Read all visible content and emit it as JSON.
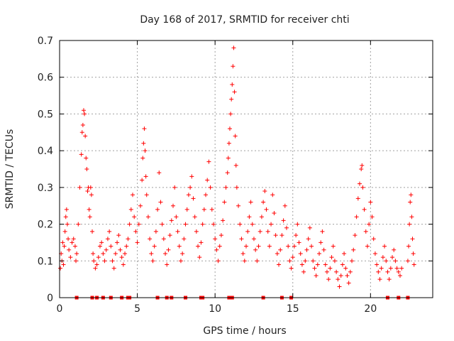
{
  "chart_data": {
    "type": "scatter",
    "title": "Day 168 of 2017, SRMTID for receiver chti",
    "xlabel": "GPS time / hours",
    "ylabel": "SRMTID / TECUs",
    "xlim": [
      0,
      24
    ],
    "ylim": [
      0,
      0.7
    ],
    "grid": true,
    "x_ticks": [
      0,
      5,
      10,
      15,
      20
    ],
    "x_tick_labels": [
      "0",
      "5",
      "10",
      "15",
      "20"
    ],
    "y_ticks": [
      0,
      0.1,
      0.2,
      0.3,
      0.4,
      0.5,
      0.6,
      0.7
    ],
    "y_tick_labels": [
      "0",
      "0.1",
      "0.2",
      "0.3",
      "0.4",
      "0.5",
      "0.6",
      "0.7"
    ],
    "marker": "+",
    "colors": {
      "points": "#ff0000",
      "grid": "#a0a0a0",
      "axis": "#000000"
    },
    "series": [
      {
        "name": "SRMTID",
        "points": [
          [
            0.05,
            0.08
          ],
          [
            0.1,
            0.12
          ],
          [
            0.15,
            0.1
          ],
          [
            0.2,
            0.15
          ],
          [
            0.25,
            0.09
          ],
          [
            0.3,
            0.14
          ],
          [
            0.35,
            0.18
          ],
          [
            0.4,
            0.22
          ],
          [
            0.45,
            0.24
          ],
          [
            0.5,
            0.2
          ],
          [
            0.55,
            0.16
          ],
          [
            0.6,
            0.13
          ],
          [
            0.7,
            0.11
          ],
          [
            0.8,
            0.15
          ],
          [
            0.9,
            0.16
          ],
          [
            1.0,
            0.14
          ],
          [
            1.05,
            0.1
          ],
          [
            1.1,
            0.12
          ],
          [
            1.2,
            0.2
          ],
          [
            1.3,
            0.3
          ],
          [
            1.4,
            0.39
          ],
          [
            1.45,
            0.45
          ],
          [
            1.5,
            0.47
          ],
          [
            1.55,
            0.51
          ],
          [
            1.6,
            0.5
          ],
          [
            1.65,
            0.44
          ],
          [
            1.7,
            0.38
          ],
          [
            1.75,
            0.35
          ],
          [
            1.8,
            0.29
          ],
          [
            1.85,
            0.3
          ],
          [
            1.9,
            0.24
          ],
          [
            1.95,
            0.22
          ],
          [
            2.0,
            0.3
          ],
          [
            2.05,
            0.28
          ],
          [
            2.1,
            0.18
          ],
          [
            2.15,
            0.12
          ],
          [
            2.2,
            0.1
          ],
          [
            2.3,
            0.08
          ],
          [
            2.4,
            0.09
          ],
          [
            2.5,
            0.11
          ],
          [
            2.6,
            0.14
          ],
          [
            2.7,
            0.15
          ],
          [
            2.8,
            0.12
          ],
          [
            2.9,
            0.1
          ],
          [
            3.0,
            0.13
          ],
          [
            3.1,
            0.16
          ],
          [
            3.2,
            0.18
          ],
          [
            3.3,
            0.14
          ],
          [
            3.4,
            0.1
          ],
          [
            3.5,
            0.08
          ],
          [
            3.6,
            0.12
          ],
          [
            3.7,
            0.15
          ],
          [
            3.8,
            0.17
          ],
          [
            3.9,
            0.13
          ],
          [
            4.0,
            0.11
          ],
          [
            4.1,
            0.09
          ],
          [
            4.2,
            0.12
          ],
          [
            4.3,
            0.14
          ],
          [
            4.4,
            0.16
          ],
          [
            4.5,
            0.2
          ],
          [
            4.6,
            0.24
          ],
          [
            4.7,
            0.28
          ],
          [
            4.8,
            0.22
          ],
          [
            4.9,
            0.18
          ],
          [
            5.0,
            0.15
          ],
          [
            5.1,
            0.2
          ],
          [
            5.2,
            0.25
          ],
          [
            5.3,
            0.32
          ],
          [
            5.35,
            0.38
          ],
          [
            5.4,
            0.42
          ],
          [
            5.45,
            0.46
          ],
          [
            5.5,
            0.4
          ],
          [
            5.55,
            0.33
          ],
          [
            5.6,
            0.28
          ],
          [
            5.7,
            0.22
          ],
          [
            5.8,
            0.16
          ],
          [
            5.9,
            0.12
          ],
          [
            6.0,
            0.1
          ],
          [
            6.1,
            0.14
          ],
          [
            6.2,
            0.18
          ],
          [
            6.3,
            0.24
          ],
          [
            6.4,
            0.34
          ],
          [
            6.5,
            0.26
          ],
          [
            6.6,
            0.2
          ],
          [
            6.7,
            0.16
          ],
          [
            6.8,
            0.12
          ],
          [
            6.9,
            0.09
          ],
          [
            7.0,
            0.13
          ],
          [
            7.1,
            0.17
          ],
          [
            7.2,
            0.21
          ],
          [
            7.3,
            0.25
          ],
          [
            7.4,
            0.3
          ],
          [
            7.5,
            0.22
          ],
          [
            7.6,
            0.18
          ],
          [
            7.7,
            0.14
          ],
          [
            7.8,
            0.1
          ],
          [
            7.9,
            0.12
          ],
          [
            8.0,
            0.16
          ],
          [
            8.1,
            0.2
          ],
          [
            8.2,
            0.24
          ],
          [
            8.3,
            0.28
          ],
          [
            8.4,
            0.3
          ],
          [
            8.5,
            0.33
          ],
          [
            8.6,
            0.27
          ],
          [
            8.7,
            0.22
          ],
          [
            8.8,
            0.18
          ],
          [
            8.9,
            0.14
          ],
          [
            9.0,
            0.11
          ],
          [
            9.1,
            0.15
          ],
          [
            9.2,
            0.2
          ],
          [
            9.3,
            0.24
          ],
          [
            9.4,
            0.28
          ],
          [
            9.5,
            0.32
          ],
          [
            9.6,
            0.37
          ],
          [
            9.7,
            0.3
          ],
          [
            9.8,
            0.24
          ],
          [
            9.9,
            0.2
          ],
          [
            10.0,
            0.16
          ],
          [
            10.1,
            0.13
          ],
          [
            10.2,
            0.1
          ],
          [
            10.3,
            0.14
          ],
          [
            10.4,
            0.17
          ],
          [
            10.5,
            0.21
          ],
          [
            10.6,
            0.26
          ],
          [
            10.7,
            0.3
          ],
          [
            10.8,
            0.34
          ],
          [
            10.85,
            0.38
          ],
          [
            10.9,
            0.42
          ],
          [
            10.95,
            0.46
          ],
          [
            11.0,
            0.5
          ],
          [
            11.05,
            0.54
          ],
          [
            11.1,
            0.58
          ],
          [
            11.15,
            0.63
          ],
          [
            11.2,
            0.68
          ],
          [
            11.25,
            0.56
          ],
          [
            11.3,
            0.44
          ],
          [
            11.35,
            0.36
          ],
          [
            11.4,
            0.3
          ],
          [
            11.5,
            0.25
          ],
          [
            11.6,
            0.2
          ],
          [
            11.7,
            0.16
          ],
          [
            11.8,
            0.12
          ],
          [
            11.9,
            0.1
          ],
          [
            12.0,
            0.14
          ],
          [
            12.1,
            0.18
          ],
          [
            12.2,
            0.22
          ],
          [
            12.3,
            0.26
          ],
          [
            12.4,
            0.2
          ],
          [
            12.5,
            0.16
          ],
          [
            12.6,
            0.13
          ],
          [
            12.7,
            0.1
          ],
          [
            12.8,
            0.14
          ],
          [
            12.9,
            0.18
          ],
          [
            13.0,
            0.22
          ],
          [
            13.1,
            0.26
          ],
          [
            13.2,
            0.29
          ],
          [
            13.3,
            0.24
          ],
          [
            13.4,
            0.18
          ],
          [
            13.5,
            0.14
          ],
          [
            13.6,
            0.2
          ],
          [
            13.7,
            0.28
          ],
          [
            13.8,
            0.23
          ],
          [
            13.9,
            0.17
          ],
          [
            14.0,
            0.12
          ],
          [
            14.1,
            0.09
          ],
          [
            14.2,
            0.13
          ],
          [
            14.3,
            0.17
          ],
          [
            14.4,
            0.21
          ],
          [
            14.5,
            0.25
          ],
          [
            14.6,
            0.19
          ],
          [
            14.7,
            0.14
          ],
          [
            14.8,
            0.1
          ],
          [
            14.9,
            0.08
          ],
          [
            15.0,
            0.11
          ],
          [
            15.1,
            0.14
          ],
          [
            15.2,
            0.17
          ],
          [
            15.3,
            0.2
          ],
          [
            15.4,
            0.15
          ],
          [
            15.5,
            0.12
          ],
          [
            15.6,
            0.09
          ],
          [
            15.7,
            0.07
          ],
          [
            15.8,
            0.1
          ],
          [
            15.9,
            0.13
          ],
          [
            16.0,
            0.16
          ],
          [
            16.1,
            0.19
          ],
          [
            16.2,
            0.14
          ],
          [
            16.3,
            0.1
          ],
          [
            16.4,
            0.08
          ],
          [
            16.5,
            0.06
          ],
          [
            16.6,
            0.09
          ],
          [
            16.7,
            0.12
          ],
          [
            16.8,
            0.15
          ],
          [
            16.9,
            0.18
          ],
          [
            17.0,
            0.13
          ],
          [
            17.1,
            0.09
          ],
          [
            17.2,
            0.07
          ],
          [
            17.3,
            0.05
          ],
          [
            17.4,
            0.08
          ],
          [
            17.5,
            0.11
          ],
          [
            17.6,
            0.14
          ],
          [
            17.7,
            0.1
          ],
          [
            17.8,
            0.07
          ],
          [
            17.9,
            0.05
          ],
          [
            18.0,
            0.03
          ],
          [
            18.1,
            0.06
          ],
          [
            18.2,
            0.09
          ],
          [
            18.3,
            0.12
          ],
          [
            18.4,
            0.08
          ],
          [
            18.5,
            0.06
          ],
          [
            18.6,
            0.04
          ],
          [
            18.7,
            0.07
          ],
          [
            18.8,
            0.1
          ],
          [
            18.9,
            0.13
          ],
          [
            19.0,
            0.17
          ],
          [
            19.1,
            0.22
          ],
          [
            19.2,
            0.27
          ],
          [
            19.3,
            0.31
          ],
          [
            19.4,
            0.35
          ],
          [
            19.45,
            0.36
          ],
          [
            19.5,
            0.3
          ],
          [
            19.6,
            0.24
          ],
          [
            19.7,
            0.18
          ],
          [
            19.8,
            0.14
          ],
          [
            19.9,
            0.2
          ],
          [
            20.0,
            0.26
          ],
          [
            20.1,
            0.22
          ],
          [
            20.2,
            0.16
          ],
          [
            20.3,
            0.12
          ],
          [
            20.4,
            0.09
          ],
          [
            20.5,
            0.07
          ],
          [
            20.6,
            0.05
          ],
          [
            20.7,
            0.08
          ],
          [
            20.8,
            0.11
          ],
          [
            20.9,
            0.14
          ],
          [
            21.0,
            0.1
          ],
          [
            21.1,
            0.07
          ],
          [
            21.2,
            0.05
          ],
          [
            21.3,
            0.08
          ],
          [
            21.4,
            0.11
          ],
          [
            21.5,
            0.13
          ],
          [
            21.6,
            0.1
          ],
          [
            21.7,
            0.08
          ],
          [
            21.8,
            0.07
          ],
          [
            21.9,
            0.06
          ],
          [
            22.0,
            0.08
          ],
          [
            22.4,
            0.1
          ],
          [
            22.45,
            0.14
          ],
          [
            22.5,
            0.2
          ],
          [
            22.55,
            0.26
          ],
          [
            22.6,
            0.28
          ],
          [
            22.65,
            0.22
          ],
          [
            22.7,
            0.16
          ],
          [
            22.75,
            0.12
          ],
          [
            22.8,
            0.09
          ]
        ]
      },
      {
        "name": "markers-at-zero",
        "marker": "square",
        "x": [
          1.1,
          2.1,
          2.4,
          2.8,
          3.3,
          4.0,
          4.4,
          4.5,
          6.3,
          6.9,
          7.2,
          8.1,
          9.1,
          9.2,
          10.9,
          11.0,
          11.1,
          13.1,
          14.3,
          14.9,
          21.1,
          21.8,
          22.4
        ],
        "y": 0
      }
    ]
  }
}
